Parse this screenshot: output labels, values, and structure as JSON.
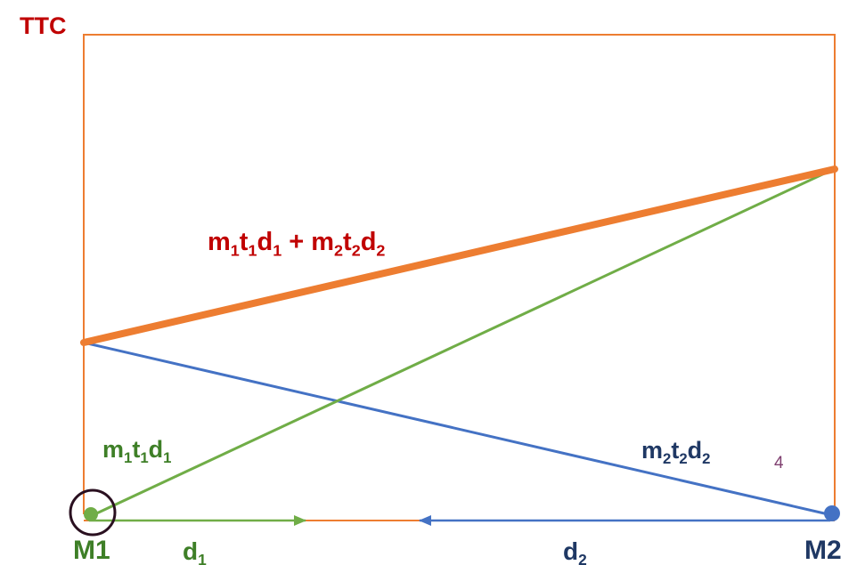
{
  "axis_label": "TTC",
  "labels": {
    "total_cost": {
      "parts": [
        {
          "t": "m"
        },
        {
          "s": "1"
        },
        {
          "t": "t"
        },
        {
          "s": "1"
        },
        {
          "t": "d"
        },
        {
          "s": "1"
        },
        {
          "t": " + m"
        },
        {
          "s": "2"
        },
        {
          "t": "t"
        },
        {
          "s": "2"
        },
        {
          "t": "d"
        },
        {
          "s": "2"
        }
      ]
    },
    "cost_m1": {
      "parts": [
        {
          "t": "m"
        },
        {
          "s": "1"
        },
        {
          "t": "t"
        },
        {
          "s": "1"
        },
        {
          "t": "d"
        },
        {
          "s": "1"
        }
      ]
    },
    "cost_m2": {
      "parts": [
        {
          "t": "m"
        },
        {
          "s": "2"
        },
        {
          "t": "t"
        },
        {
          "s": "2"
        },
        {
          "t": "d"
        },
        {
          "s": "2"
        }
      ]
    },
    "d1": {
      "parts": [
        {
          "t": "d"
        },
        {
          "s": "1"
        }
      ]
    },
    "d2": {
      "parts": [
        {
          "t": "d"
        },
        {
          "s": "2"
        }
      ]
    }
  },
  "market_left": "M1",
  "market_right": "M2",
  "page_number": "4",
  "colors": {
    "frame": "#ed7d31",
    "total_line": "#ed7d31",
    "green_line": "#70ad47",
    "blue_line": "#4472c4",
    "title_red": "#c00000",
    "green_text": "#3e7f27",
    "navy_text": "#1f3864",
    "circle": "#2a1020"
  },
  "icons": {
    "m1_point": "green-dot",
    "m2_point": "blue-dot",
    "highlight": "circle-outline",
    "d1_arrow": "arrow-right",
    "d2_arrow": "arrow-left"
  }
}
